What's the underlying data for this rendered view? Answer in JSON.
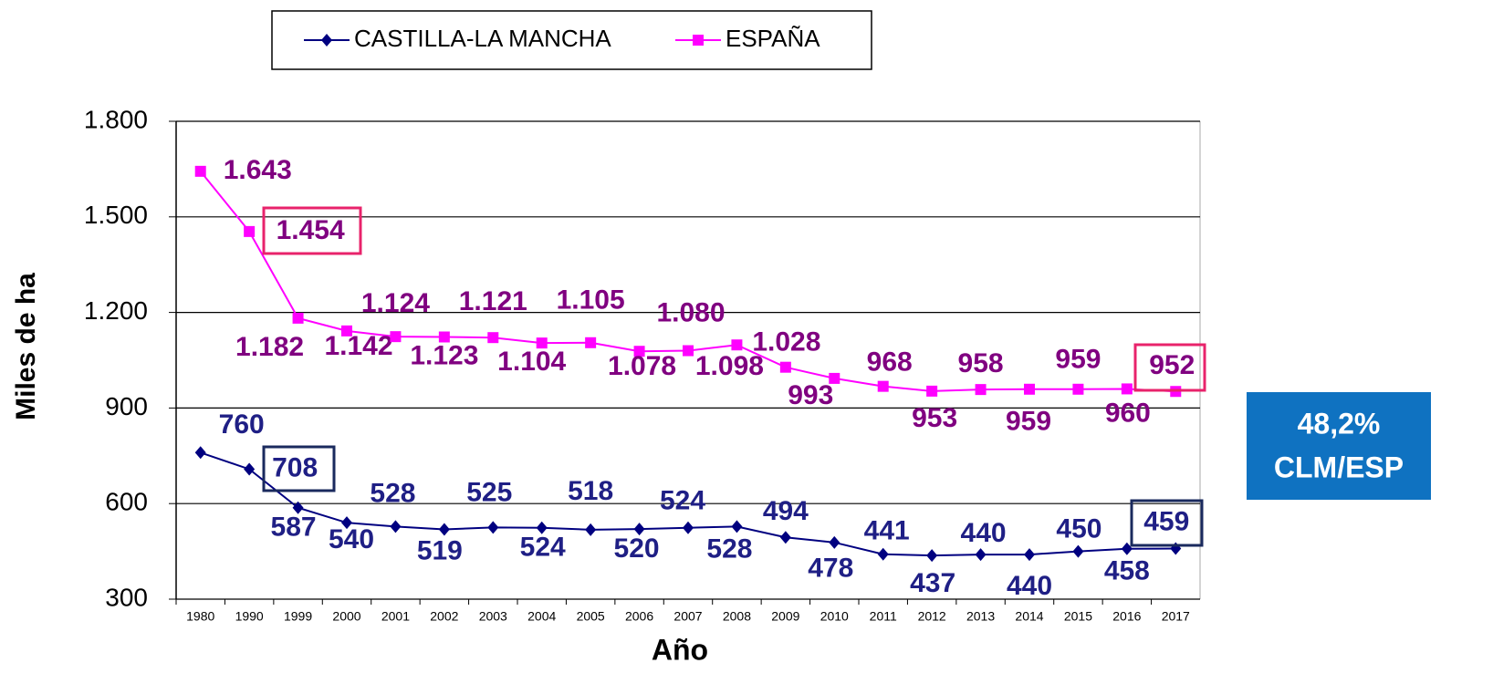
{
  "chart_data": {
    "type": "line",
    "categories": [
      "1980",
      "1990",
      "1999",
      "2000",
      "2001",
      "2002",
      "2003",
      "2004",
      "2005",
      "2006",
      "2007",
      "2008",
      "2009",
      "2010",
      "2011",
      "2012",
      "2013",
      "2014",
      "2015",
      "2016",
      "2017"
    ],
    "series": [
      {
        "name": "CASTILLA-LA MANCHA",
        "color": "#000080",
        "label_color": "#1f1f85",
        "marker": "diamond",
        "values": [
          760,
          708,
          587,
          540,
          528,
          519,
          525,
          524,
          518,
          520,
          524,
          528,
          494,
          478,
          441,
          437,
          440,
          440,
          450,
          458,
          459
        ]
      },
      {
        "name": "ESPAÑA",
        "color": "#ff00ff",
        "label_color": "#800080",
        "marker": "square",
        "values": [
          1643,
          1454,
          1182,
          1142,
          1124,
          1123,
          1121,
          1104,
          1105,
          1078,
          1080,
          1098,
          1028,
          993,
          968,
          953,
          958,
          959,
          959,
          960,
          952
        ],
        "value_labels": [
          "1.643",
          "1.454",
          "1.182",
          "1.142",
          "1.124",
          "1.123",
          "1.121",
          "1.104",
          "1.105",
          "1.078",
          "1.080",
          "1.098",
          "1.028",
          "993",
          "968",
          "953",
          "958",
          "959",
          "959",
          "960",
          "952"
        ]
      }
    ],
    "ylabel": "Miles de ha",
    "xlabel": "Año",
    "ylim": [
      300,
      1800
    ],
    "yticks": [
      300,
      600,
      900,
      {
        "value": 1200,
        "label": "1.200"
      },
      {
        "value": 1500,
        "label": "1.500"
      },
      {
        "value": 1800,
        "label": "1.800"
      }
    ],
    "grid": true,
    "legend": "top",
    "annotation": [
      "48,2%",
      "CLM/ESP"
    ]
  }
}
